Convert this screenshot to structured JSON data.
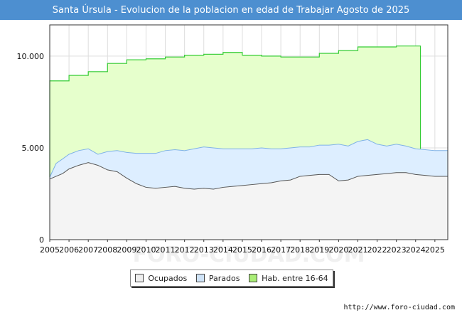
{
  "title": "Santa Úrsula - Evolucion de la poblacion en edad de Trabajar Agosto de 2025",
  "source": "http://www.foro-ciudad.com",
  "watermark": "FORO-CIUDAD.COM",
  "colors": {
    "title_bg": "#4d8fd0",
    "hab_fill": "#e6ffcc",
    "hab_line": "#33cc33",
    "parados_fill": "#ddeeff",
    "parados_line": "#7fb2e6",
    "ocupados_fill": "#f4f4f4",
    "ocupados_line": "#555555"
  },
  "legend": [
    {
      "key": "ocupados",
      "label": "Ocupados",
      "color": "#eeeeee"
    },
    {
      "key": "parados",
      "label": "Parados",
      "color": "#cfe3f7"
    },
    {
      "key": "hab",
      "label": "Hab. entre 16-64",
      "color": "#aaee77"
    }
  ],
  "chart_data": {
    "type": "area",
    "title": "Santa Úrsula - Evolucion de la poblacion en edad de Trabajar Agosto de 2025",
    "xlabel": "",
    "ylabel": "",
    "xlim": [
      2005,
      2025.67
    ],
    "ylim": [
      0,
      11700
    ],
    "yticks": [
      0,
      5000,
      10000
    ],
    "ytick_labels": [
      "0",
      "5.000",
      "10.000"
    ],
    "xticks": [
      2005,
      2006,
      2007,
      2008,
      2009,
      2010,
      2011,
      2012,
      2013,
      2014,
      2015,
      2016,
      2017,
      2018,
      2019,
      2020,
      2021,
      2022,
      2023,
      2024,
      2025
    ],
    "xtick_labels": [
      "2005",
      "2006",
      "2007",
      "2008",
      "2009",
      "2010",
      "2011",
      "2012",
      "2013",
      "2014",
      "2015",
      "2016",
      "2017",
      "2018",
      "2019",
      "2020",
      "2021",
      "2022",
      "2023",
      "2024",
      "2025"
    ],
    "grid": true,
    "series": [
      {
        "name": "Hab. entre 16-64",
        "x": [
          2005,
          2006,
          2007,
          2008,
          2009,
          2010,
          2011,
          2012,
          2013,
          2014,
          2015,
          2016,
          2017,
          2018,
          2019,
          2020,
          2021,
          2022,
          2023,
          2024
        ],
        "values": [
          8650,
          8950,
          9150,
          9600,
          9800,
          9850,
          9950,
          10050,
          10100,
          10200,
          10050,
          10000,
          9950,
          9950,
          10150,
          10300,
          10500,
          10500,
          10550,
          10550
        ]
      },
      {
        "name": "Parados",
        "x": [
          2005,
          2005.33,
          2005.67,
          2006,
          2006.5,
          2007,
          2007.5,
          2008,
          2008.5,
          2009,
          2009.5,
          2010,
          2010.5,
          2011,
          2011.5,
          2012,
          2012.5,
          2013,
          2013.5,
          2014,
          2014.5,
          2015,
          2015.5,
          2016,
          2016.5,
          2017,
          2017.5,
          2018,
          2018.5,
          2019,
          2019.5,
          2020,
          2020.5,
          2021,
          2021.5,
          2022,
          2022.5,
          2023,
          2023.5,
          2024,
          2024.5,
          2025,
          2025.67
        ],
        "values": [
          3400,
          4150,
          4400,
          4650,
          4850,
          4950,
          4650,
          4800,
          4850,
          4750,
          4700,
          4700,
          4700,
          4850,
          4900,
          4850,
          4950,
          5050,
          5000,
          4950,
          4950,
          4950,
          4950,
          5000,
          4950,
          4950,
          5000,
          5050,
          5050,
          5150,
          5150,
          5200,
          5100,
          5350,
          5450,
          5200,
          5100,
          5200,
          5100,
          4950,
          4900,
          4850,
          4850
        ]
      },
      {
        "name": "Ocupados",
        "x": [
          2005,
          2005.33,
          2005.67,
          2006,
          2006.5,
          2007,
          2007.5,
          2008,
          2008.5,
          2009,
          2009.5,
          2010,
          2010.5,
          2011,
          2011.5,
          2012,
          2012.5,
          2013,
          2013.5,
          2014,
          2014.5,
          2015,
          2015.5,
          2016,
          2016.5,
          2017,
          2017.5,
          2018,
          2018.5,
          2019,
          2019.5,
          2020,
          2020.5,
          2021,
          2021.5,
          2022,
          2022.5,
          2023,
          2023.5,
          2024,
          2024.5,
          2025,
          2025.67
        ],
        "values": [
          3300,
          3450,
          3600,
          3850,
          4050,
          4200,
          4050,
          3800,
          3700,
          3350,
          3050,
          2850,
          2800,
          2850,
          2900,
          2800,
          2750,
          2800,
          2750,
          2850,
          2900,
          2950,
          3000,
          3050,
          3100,
          3200,
          3250,
          3450,
          3500,
          3550,
          3550,
          3200,
          3250,
          3450,
          3500,
          3550,
          3600,
          3650,
          3650,
          3550,
          3500,
          3450,
          3450
        ]
      }
    ]
  }
}
